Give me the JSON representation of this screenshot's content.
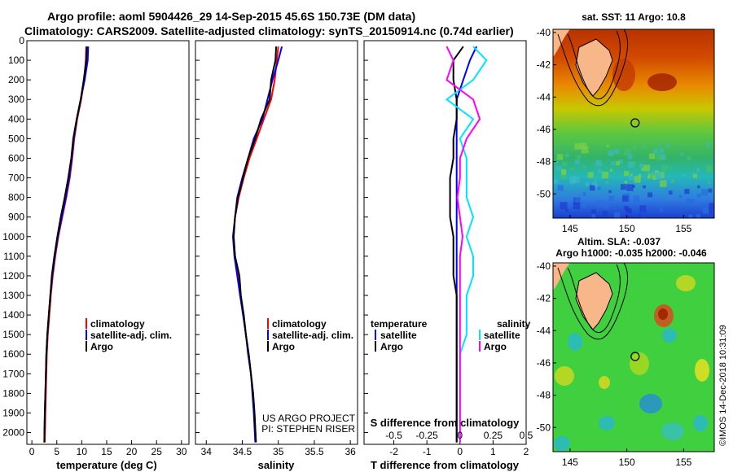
{
  "header": {
    "title_line1": "Argo profile: aoml 5904426_29 14-Sep-2015 45.6S 150.73E (DM data)",
    "title_line2": "Climatology: CARS2009. Satellite-adjusted climatology: synTS_20150914.nc (0.74d earlier)"
  },
  "colors": {
    "climatology": "#ff0000",
    "satellite": "#0000ff",
    "argo": "#000000",
    "satellite_salinity": "#00e5ff",
    "argo_salinity": "#ff00ff"
  },
  "chart_data": [
    {
      "type": "line",
      "name": "temperature",
      "xlabel": "temperature (deg C)",
      "ylabel": "",
      "xlim": [
        -1,
        31.5
      ],
      "ylim": [
        2060,
        0
      ],
      "xticks": [
        0,
        5,
        10,
        15,
        20,
        25,
        30
      ],
      "yticks": [
        0,
        100,
        200,
        300,
        400,
        500,
        600,
        700,
        800,
        900,
        1000,
        1100,
        1200,
        1300,
        1400,
        1500,
        1600,
        1700,
        1800,
        1900,
        2000
      ],
      "legend": [
        "climatology",
        "satellite-adj. clim.",
        "Argo"
      ],
      "depth": [
        30,
        100,
        200,
        300,
        400,
        500,
        600,
        700,
        800,
        900,
        1000,
        1100,
        1200,
        1300,
        1400,
        1500,
        1600,
        1700,
        1800,
        1900,
        2050
      ],
      "series": [
        {
          "name": "climatology",
          "values": [
            10.9,
            10.8,
            10.5,
            9.9,
            9.1,
            8.5,
            8.1,
            7.6,
            6.9,
            6.1,
            5.3,
            4.7,
            4.2,
            3.8,
            3.5,
            3.2,
            3.0,
            2.9,
            2.8,
            2.7,
            2.6
          ]
        },
        {
          "name": "satellite-adj. clim.",
          "values": [
            11.3,
            11.2,
            10.6,
            9.8,
            9.0,
            8.4,
            8.0,
            7.5,
            6.8,
            6.0,
            5.2,
            4.6,
            4.1,
            3.7,
            3.4,
            3.1,
            2.9,
            2.8,
            2.7,
            2.6,
            2.5
          ]
        },
        {
          "name": "Argo",
          "values": [
            11.0,
            10.9,
            10.4,
            9.8,
            9.0,
            8.3,
            7.9,
            7.3,
            6.6,
            5.8,
            5.1,
            4.5,
            4.0,
            3.7,
            3.4,
            3.1,
            2.9,
            2.8,
            2.7,
            2.6,
            2.5
          ]
        }
      ]
    },
    {
      "type": "line",
      "name": "salinity",
      "xlabel": "salinity",
      "ylabel": "",
      "xlim": [
        33.85,
        36.1
      ],
      "ylim": [
        2060,
        0
      ],
      "xticks": [
        34,
        34.5,
        35,
        35.5,
        36
      ],
      "xtick_labels": [
        "34",
        "34.5",
        "35",
        "35.5",
        "36"
      ],
      "legend": [
        "climatology",
        "satellite-adj. clim.",
        "Argo"
      ],
      "annotation": [
        "US ARGO PROJECT",
        "PI: STEPHEN RISER"
      ],
      "depth": [
        30,
        100,
        200,
        300,
        400,
        500,
        600,
        700,
        800,
        900,
        1000,
        1100,
        1200,
        1300,
        1400,
        1500,
        1600,
        1700,
        1800,
        1900,
        2050
      ],
      "series": [
        {
          "name": "climatology",
          "values": [
            35.0,
            34.98,
            34.95,
            34.9,
            34.8,
            34.7,
            34.6,
            34.52,
            34.45,
            34.4,
            34.38,
            34.4,
            34.44,
            34.47,
            34.52,
            34.55,
            34.59,
            34.62,
            34.65,
            34.67,
            34.69
          ]
        },
        {
          "name": "satellite-adj. clim.",
          "values": [
            35.05,
            35.0,
            34.92,
            34.85,
            34.78,
            34.66,
            34.58,
            34.5,
            34.43,
            34.4,
            34.37,
            34.39,
            34.43,
            34.47,
            34.51,
            34.55,
            34.58,
            34.62,
            34.64,
            34.66,
            34.68
          ]
        },
        {
          "name": "Argo",
          "values": [
            34.97,
            34.96,
            34.9,
            34.88,
            34.76,
            34.68,
            34.58,
            34.51,
            34.44,
            34.4,
            34.38,
            34.4,
            34.46,
            34.48,
            34.52,
            34.55,
            34.59,
            34.62,
            34.65,
            34.67,
            34.69
          ]
        }
      ]
    },
    {
      "type": "line",
      "name": "difference from climatology",
      "xlabel": "T difference from climatology",
      "xlabel_top": "S difference from climatology",
      "xlim": [
        -2.9,
        2.0
      ],
      "ylim": [
        2060,
        0
      ],
      "xticks": [
        -2,
        -1,
        0,
        1,
        2
      ],
      "xticks_top": [
        "-0.5",
        "-0.25",
        "0",
        "0.25",
        "0.5"
      ],
      "legend_title_t": "temperature",
      "legend_title_s": "salinity",
      "legend": [
        "satellite",
        "Argo",
        "satellite",
        "Argo"
      ],
      "depth": [
        30,
        100,
        200,
        300,
        400,
        500,
        600,
        700,
        800,
        900,
        1000,
        1100,
        1200,
        1300,
        1400,
        1500,
        1600,
        1700,
        1800,
        1900,
        2050
      ],
      "series": [
        {
          "name": "temperature satellite",
          "values": [
            0.5,
            0.3,
            0.1,
            -0.1,
            -0.1,
            -0.1,
            -0.1,
            -0.1,
            -0.1,
            -0.1,
            -0.1,
            -0.1,
            -0.1,
            -0.1,
            -0.1,
            -0.1,
            -0.1,
            -0.1,
            -0.1,
            -0.1,
            -0.1
          ]
        },
        {
          "name": "temperature Argo",
          "values": [
            0.1,
            -0.2,
            -0.2,
            -0.1,
            -0.1,
            -0.2,
            -0.2,
            -0.3,
            -0.3,
            -0.3,
            -0.2,
            -0.2,
            -0.2,
            -0.1,
            -0.1,
            -0.1,
            -0.1,
            -0.1,
            -0.1,
            -0.1,
            -0.1
          ]
        },
        {
          "name": "salinity satellite",
          "values": [
            0.1,
            0.2,
            0.1,
            -0.1,
            0.1,
            0.0,
            0.05,
            0.05,
            0.05,
            0.1,
            0.05,
            0.1,
            0.1,
            0.05,
            0.05,
            0.05,
            0.0,
            0.0,
            0.0,
            0.0,
            0.0
          ]
        },
        {
          "name": "salinity Argo",
          "values": [
            -0.1,
            -0.05,
            -0.1,
            0.1,
            0.15,
            0.05,
            0.0,
            0.0,
            -0.02,
            0.0,
            0.02,
            0.0,
            0.0,
            0.0,
            0.0,
            0.0,
            0.0,
            0.0,
            0.0,
            0.0,
            0.0
          ]
        }
      ]
    },
    {
      "type": "heatmap",
      "name": "sat. SST map",
      "title": "sat. SST: 11 Argo: 10.8",
      "xlim": [
        143.5,
        157.7
      ],
      "ylim": [
        -51.5,
        -39.8
      ],
      "xticks": [
        145,
        150,
        155
      ],
      "yticks": [
        -40,
        -42,
        -44,
        -46,
        -48,
        -50
      ],
      "marker": {
        "lon": 150.73,
        "lat": -45.6
      }
    },
    {
      "type": "heatmap",
      "name": "altimetry SLA map",
      "title": "Altim. SLA: -0.037",
      "subtitle": "Argo h1000: -0.035 h2000: -0.046",
      "xlim": [
        143.5,
        157.7
      ],
      "ylim": [
        -51.5,
        -39.8
      ],
      "xticks": [
        145,
        150,
        155
      ],
      "yticks": [
        -40,
        -42,
        -44,
        -46,
        -48,
        -50
      ],
      "marker": {
        "lon": 150.73,
        "lat": -45.6
      }
    }
  ],
  "footer": {
    "imos_stamp": "©IMOS 14-Dec-2018 10:31:09"
  }
}
